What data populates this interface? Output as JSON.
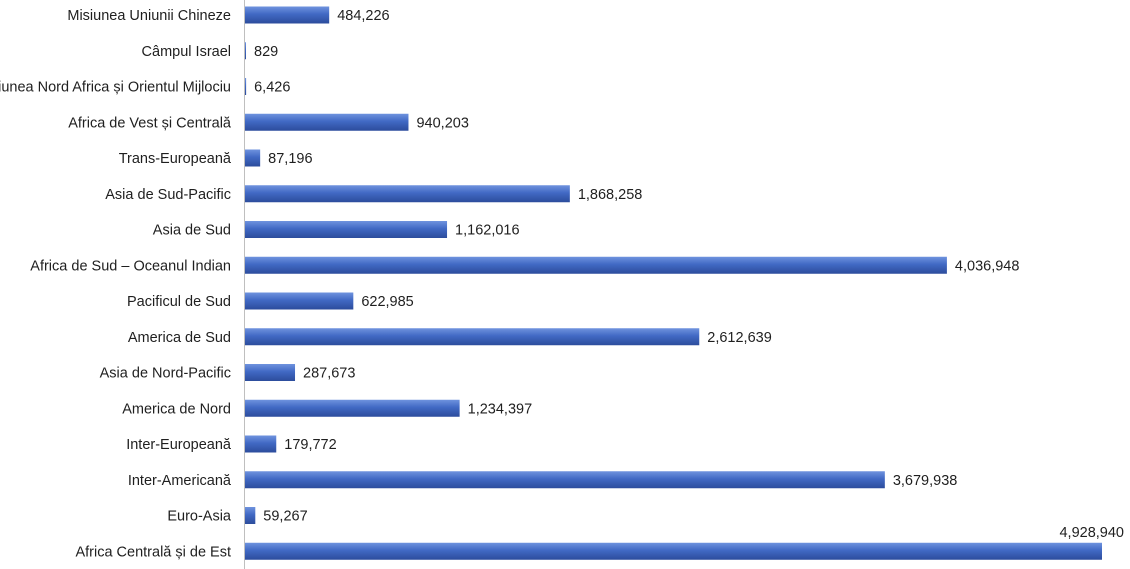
{
  "chart_data": {
    "type": "bar",
    "orientation": "horizontal",
    "title": "",
    "xlabel": "",
    "ylabel": "",
    "grid": false,
    "legend": "none",
    "bar_color": "#4169c4",
    "bar_color_light": "#6f93de",
    "bar_color_dark": "#2c4c9c",
    "xlim": [
      0,
      5000000
    ],
    "categories": [
      "Misiunea Uniunii Chineze",
      "Câmpul Israel",
      "Uniunea Nord Africa și Orientul Mijlociu",
      "Africa de Vest și Centrală",
      "Trans-Europeană",
      "Asia de Sud-Pacific",
      "Asia de Sud",
      "Africa de Sud – Oceanul Indian",
      "Pacificul de Sud",
      "America de Sud",
      "Asia de Nord-Pacific",
      "America de Nord",
      "Inter-Europeană",
      "Inter-Americană",
      "Euro-Asia",
      "Africa Centrală și de Est"
    ],
    "values": [
      484226,
      829,
      6426,
      940203,
      87196,
      1868258,
      1162016,
      4036948,
      622985,
      2612639,
      287673,
      1234397,
      179772,
      3679938,
      59267,
      4928940
    ],
    "value_labels": [
      "484,226",
      "829",
      "6,426",
      "940,203",
      "87,196",
      "1,868,258",
      "1,162,016",
      "4,036,948",
      "622,985",
      "2,612,639",
      "287,673",
      "1,234,397",
      "179,772",
      "3,679,938",
      "59,267",
      "4,928,940"
    ]
  }
}
